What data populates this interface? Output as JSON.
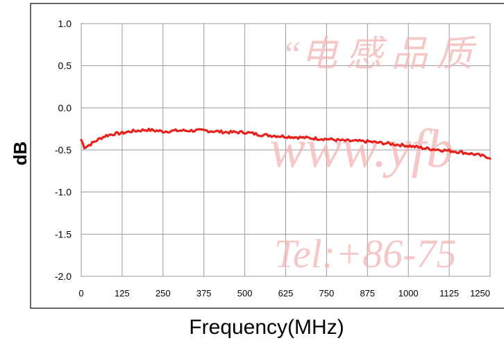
{
  "chart_data": {
    "type": "line",
    "title": "",
    "xlabel": "Frequency(MHz)",
    "ylabel": "dB",
    "xlim": [
      0,
      1250
    ],
    "ylim": [
      -2.0,
      1.0
    ],
    "grid": true,
    "x_ticks": [
      "0",
      "125",
      "250",
      "375",
      "500",
      "625",
      "750",
      "875",
      "1000",
      "1125",
      "1250"
    ],
    "y_ticks": [
      "1.0",
      "0.5",
      "0.0",
      "-0.5",
      "-1.0",
      "-1.5",
      "-2.0"
    ],
    "series_color": "#e8201c",
    "series": [
      {
        "x": [
          0,
          10,
          25,
          50,
          75,
          100,
          125,
          150,
          175,
          200,
          250,
          300,
          375,
          450,
          500,
          550,
          625,
          700,
          750,
          800,
          875,
          950,
          1000,
          1050,
          1100,
          1150,
          1200,
          1250
        ],
        "values": [
          -0.38,
          -0.47,
          -0.44,
          -0.38,
          -0.33,
          -0.31,
          -0.3,
          -0.28,
          -0.27,
          -0.26,
          -0.28,
          -0.27,
          -0.27,
          -0.29,
          -0.29,
          -0.32,
          -0.34,
          -0.36,
          -0.37,
          -0.39,
          -0.4,
          -0.43,
          -0.45,
          -0.48,
          -0.5,
          -0.52,
          -0.55,
          -0.59
        ]
      }
    ]
  },
  "watermark": {
    "line1": "“电 感 品 质",
    "line2": "www.yfb",
    "line3": "Tel:+86-75"
  }
}
